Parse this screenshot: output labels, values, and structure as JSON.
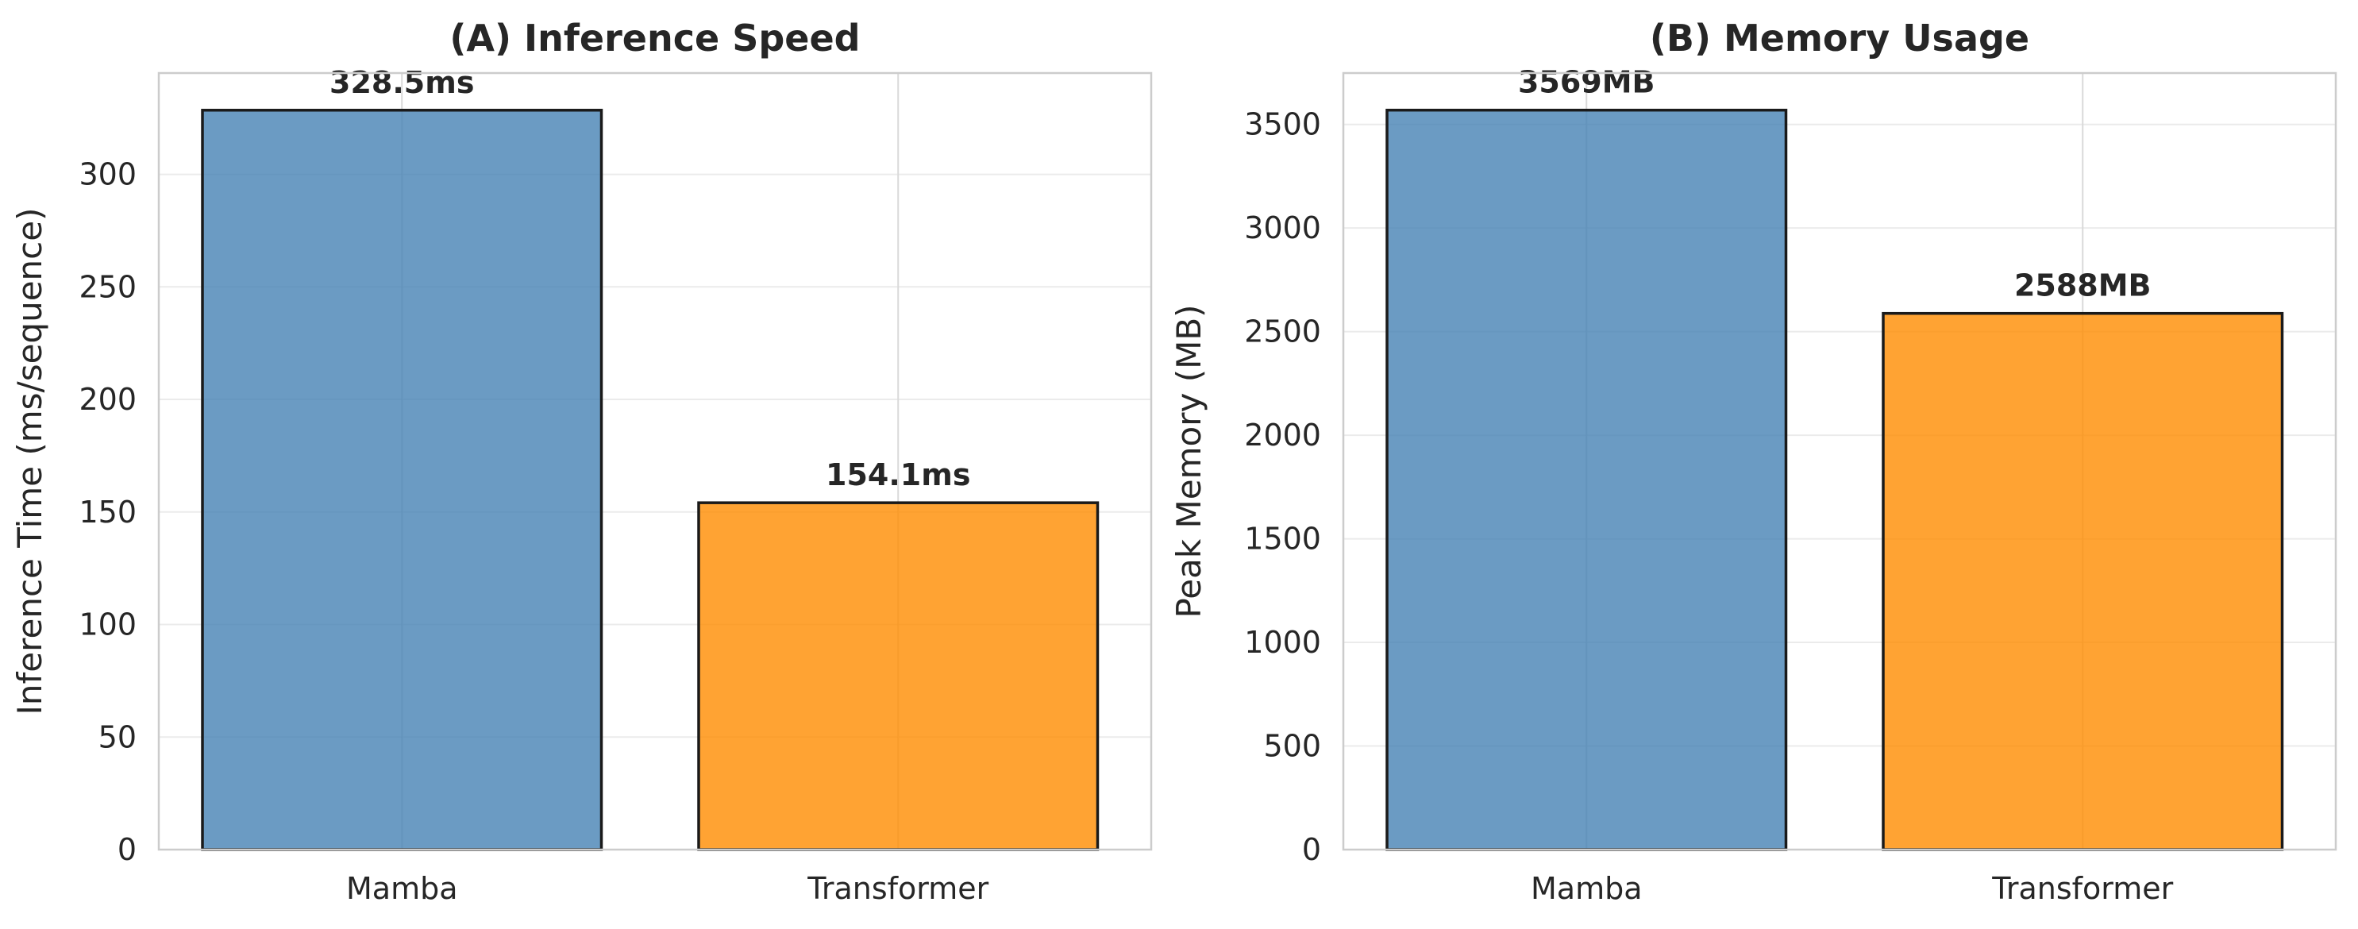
{
  "chart_data": [
    {
      "type": "bar",
      "title": "(A) Inference Speed",
      "xlabel": "",
      "ylabel": "Inference Time (ms/sequence)",
      "categories": [
        "Mamba",
        "Transformer"
      ],
      "values": [
        328.5,
        154.1
      ],
      "value_labels": [
        "328.5ms",
        "154.1ms"
      ],
      "bar_colors": [
        "#4682b4",
        "#ff8c00"
      ],
      "ylim": [
        0,
        345
      ],
      "yticks": [
        0,
        50,
        100,
        150,
        200,
        250,
        300
      ],
      "grid": true,
      "legend": "none"
    },
    {
      "type": "bar",
      "title": "(B) Memory Usage",
      "xlabel": "",
      "ylabel": "Peak Memory (MB)",
      "categories": [
        "Mamba",
        "Transformer"
      ],
      "values": [
        3569,
        2588
      ],
      "value_labels": [
        "3569MB",
        "2588MB"
      ],
      "bar_colors": [
        "#4682b4",
        "#ff8c00"
      ],
      "ylim": [
        0,
        3748
      ],
      "yticks": [
        0,
        500,
        1000,
        1500,
        2000,
        2500,
        3000,
        3500
      ],
      "grid": true,
      "legend": "none"
    }
  ]
}
